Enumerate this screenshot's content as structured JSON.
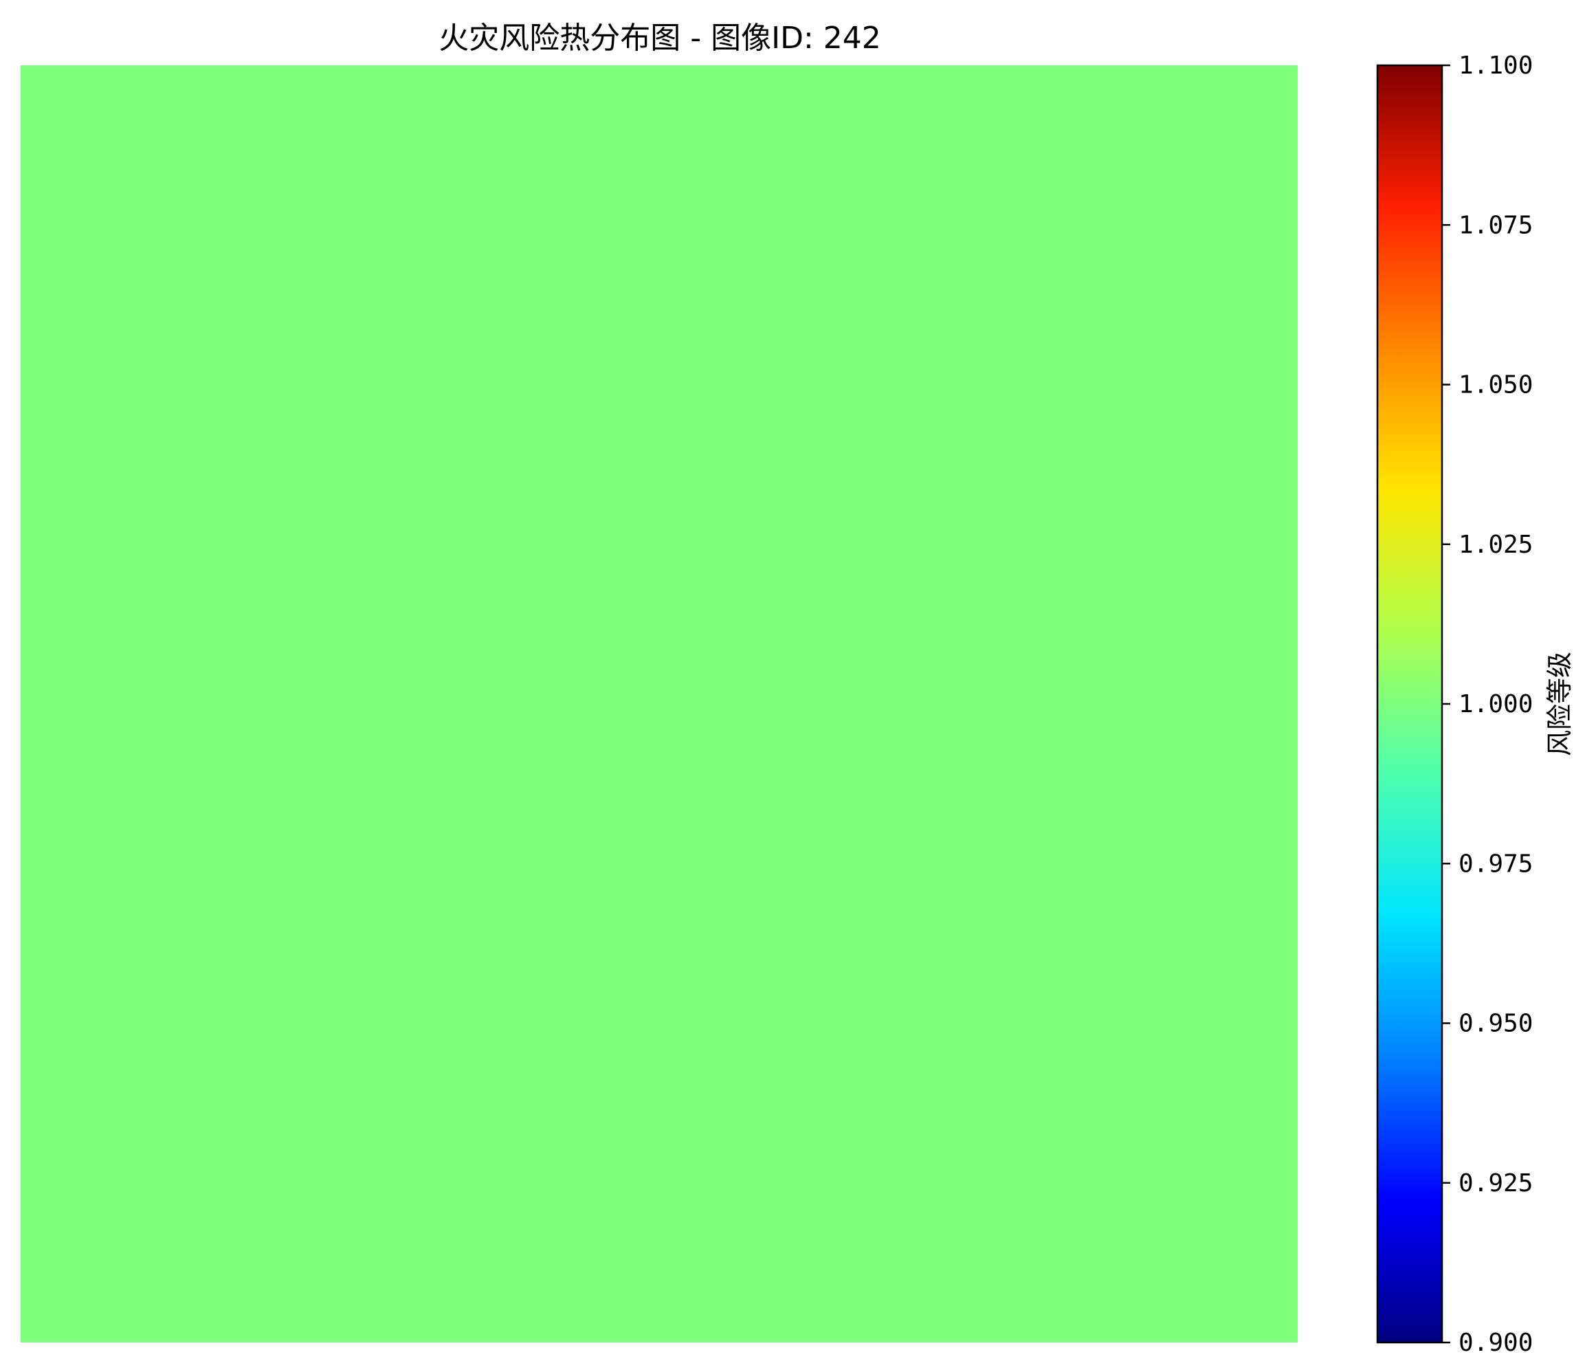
{
  "chart_data": {
    "type": "heatmap",
    "title": "火灾风险热分布图 - 图像ID: 242",
    "grid": false,
    "colormap": "jet",
    "z_uniform_value": 1.0,
    "fill_color": "#7dff7a",
    "colorbar": {
      "label": "风险等级",
      "range": [
        0.9,
        1.1
      ],
      "ticks": [
        {
          "value": 1.1,
          "label": "1.100"
        },
        {
          "value": 1.075,
          "label": "1.075"
        },
        {
          "value": 1.05,
          "label": "1.050"
        },
        {
          "value": 1.025,
          "label": "1.025"
        },
        {
          "value": 1.0,
          "label": "1.000"
        },
        {
          "value": 0.975,
          "label": "0.975"
        },
        {
          "value": 0.95,
          "label": "0.950"
        },
        {
          "value": 0.925,
          "label": "0.925"
        },
        {
          "value": 0.9,
          "label": "0.900"
        }
      ],
      "gradient_colors": [
        "#000080",
        "#0000ff",
        "#0080ff",
        "#00e5ff",
        "#4dffae",
        "#aeff4d",
        "#ffe600",
        "#ff8800",
        "#ff2000",
        "#800000"
      ]
    }
  }
}
